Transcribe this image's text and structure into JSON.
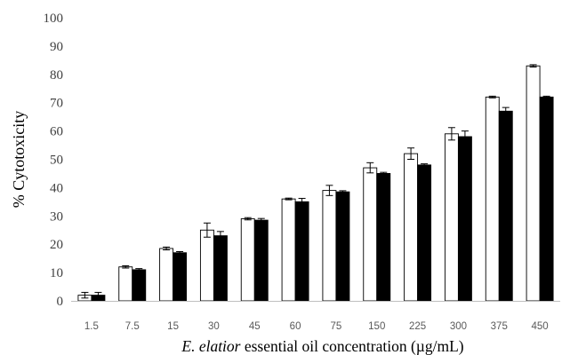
{
  "chart_data": {
    "type": "bar",
    "title": "",
    "xlabel_italic": "E. elatior",
    "xlabel_rest": " essential oil concentration (µg/mL)",
    "ylabel": "% Cytotoxicity",
    "ylim": [
      0,
      100
    ],
    "yticks": [
      0,
      10,
      20,
      30,
      40,
      50,
      60,
      70,
      80,
      90,
      100
    ],
    "categories": [
      "1.5",
      "7.5",
      "15",
      "30",
      "45",
      "60",
      "75",
      "150",
      "225",
      "300",
      "375",
      "450"
    ],
    "grid": false,
    "legend": "none",
    "series": [
      {
        "color": "#ffffff",
        "values": [
          2,
          12,
          18.5,
          25,
          29,
          36,
          39,
          47,
          52,
          59,
          72,
          83
        ],
        "errors": [
          1.0,
          0.4,
          0.5,
          2.5,
          0.4,
          0.3,
          1.8,
          1.8,
          2.0,
          2.2,
          0.3,
          0.4
        ]
      },
      {
        "color": "#000000",
        "values": [
          2,
          11,
          17,
          23,
          28.5,
          35,
          38.5,
          45,
          48,
          58,
          67,
          72
        ],
        "errors": [
          1.0,
          0.4,
          0.4,
          1.5,
          0.6,
          1.2,
          0.4,
          0.4,
          0.4,
          2.0,
          1.3,
          0.3
        ]
      }
    ]
  }
}
